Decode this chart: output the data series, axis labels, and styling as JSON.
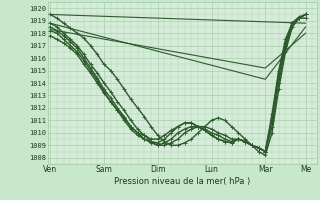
{
  "title": "",
  "xlabel": "Pression niveau de la mer( hPa )",
  "bg_color": "#c8e8cc",
  "plot_bg_color": "#d4ecd8",
  "grid_color": "#a0c8a4",
  "line_color": "#2d5a2d",
  "ylim": [
    1007.5,
    1020.5
  ],
  "yticks": [
    1008,
    1009,
    1010,
    1011,
    1012,
    1013,
    1014,
    1015,
    1016,
    1017,
    1018,
    1019,
    1020
  ],
  "x_day_labels": [
    "Ven",
    "Sam",
    "Dim",
    "Lun",
    "Mar",
    "Me"
  ],
  "x_day_positions": [
    0,
    24,
    48,
    72,
    96,
    114
  ],
  "xlim": [
    -1,
    119
  ],
  "series": [
    {
      "x": [
        0,
        114
      ],
      "y": [
        1019.5,
        1018.8
      ],
      "marker": null,
      "lw": 0.8
    },
    {
      "x": [
        0,
        96,
        114
      ],
      "y": [
        1018.8,
        1014.3,
        1018.5
      ],
      "marker": null,
      "lw": 0.8
    },
    {
      "x": [
        0,
        96,
        114
      ],
      "y": [
        1018.3,
        1015.2,
        1018.0
      ],
      "marker": null,
      "lw": 0.8
    },
    {
      "x": [
        0,
        3,
        6,
        9,
        12,
        15,
        18,
        21,
        24,
        27,
        30,
        33,
        36,
        39,
        42,
        45,
        48,
        51,
        54,
        57,
        60,
        63,
        66,
        69,
        72,
        75,
        78,
        81,
        84,
        87,
        90,
        93,
        96,
        99,
        102,
        105,
        108,
        111,
        114
      ],
      "y": [
        1019.5,
        1019.2,
        1018.8,
        1018.4,
        1018.0,
        1017.6,
        1017.0,
        1016.3,
        1015.5,
        1015.0,
        1014.3,
        1013.5,
        1012.7,
        1012.0,
        1011.3,
        1010.5,
        1009.8,
        1009.3,
        1009.0,
        1009.0,
        1009.2,
        1009.5,
        1010.0,
        1010.5,
        1011.0,
        1011.2,
        1011.0,
        1010.5,
        1010.0,
        1009.5,
        1009.0,
        1008.5,
        1008.2,
        1010.0,
        1013.5,
        1016.5,
        1018.5,
        1019.2,
        1019.5
      ],
      "marker": "+",
      "lw": 1.0,
      "ms": 2.5
    },
    {
      "x": [
        0,
        3,
        6,
        9,
        12,
        15,
        18,
        21,
        24,
        27,
        30,
        33,
        36,
        39,
        42,
        45,
        48,
        51,
        54,
        57,
        60,
        63,
        66,
        69,
        72,
        75,
        78,
        81,
        84,
        87,
        90,
        93,
        96,
        99,
        102,
        105,
        108,
        111,
        114
      ],
      "y": [
        1018.8,
        1018.5,
        1018.0,
        1017.5,
        1017.0,
        1016.3,
        1015.5,
        1014.8,
        1014.0,
        1013.3,
        1012.5,
        1011.8,
        1011.0,
        1010.3,
        1009.8,
        1009.3,
        1009.0,
        1009.0,
        1009.2,
        1009.5,
        1010.0,
        1010.3,
        1010.5,
        1010.5,
        1010.3,
        1010.0,
        1009.8,
        1009.5,
        1009.5,
        1009.3,
        1009.0,
        1008.8,
        1008.5,
        1010.5,
        1014.0,
        1016.8,
        1018.5,
        1019.2,
        1019.5
      ],
      "marker": "+",
      "lw": 1.0,
      "ms": 2.5
    },
    {
      "x": [
        0,
        3,
        6,
        9,
        12,
        15,
        18,
        21,
        24,
        27,
        30,
        33,
        36,
        39,
        42,
        45,
        48,
        51,
        54,
        57,
        60,
        63,
        66,
        69,
        72,
        75,
        78,
        81,
        84,
        87,
        90,
        93,
        96,
        99,
        102,
        105,
        108,
        111,
        114
      ],
      "y": [
        1018.5,
        1018.2,
        1017.8,
        1017.3,
        1016.8,
        1016.0,
        1015.2,
        1014.4,
        1013.5,
        1012.8,
        1012.0,
        1011.3,
        1010.5,
        1010.0,
        1009.5,
        1009.2,
        1009.0,
        1009.2,
        1009.5,
        1010.0,
        1010.3,
        1010.5,
        1010.5,
        1010.3,
        1010.0,
        1009.8,
        1009.5,
        1009.3,
        1009.5,
        1009.3,
        1009.0,
        1008.8,
        1008.5,
        1011.0,
        1014.5,
        1017.0,
        1018.8,
        1019.3,
        1019.5
      ],
      "marker": "+",
      "lw": 1.0,
      "ms": 2.5
    },
    {
      "x": [
        0,
        3,
        6,
        9,
        12,
        15,
        18,
        21,
        24,
        27,
        30,
        33,
        36,
        39,
        42,
        45,
        48,
        51,
        54,
        57,
        60,
        63,
        66,
        69,
        72,
        75,
        78,
        81,
        84,
        87,
        90,
        93,
        96,
        99,
        102,
        105,
        108,
        111,
        114
      ],
      "y": [
        1018.2,
        1018.0,
        1017.5,
        1017.0,
        1016.5,
        1015.8,
        1015.0,
        1014.2,
        1013.3,
        1012.5,
        1011.8,
        1011.0,
        1010.3,
        1009.8,
        1009.5,
        1009.3,
        1009.2,
        1009.5,
        1010.0,
        1010.5,
        1010.8,
        1010.8,
        1010.5,
        1010.2,
        1009.8,
        1009.5,
        1009.3,
        1009.2,
        1009.5,
        1009.3,
        1009.0,
        1008.8,
        1008.5,
        1011.2,
        1014.8,
        1017.2,
        1018.8,
        1019.2,
        1019.5
      ],
      "marker": "+",
      "lw": 1.0,
      "ms": 2.5
    },
    {
      "x": [
        0,
        3,
        6,
        9,
        12,
        15,
        18,
        21,
        24,
        27,
        30,
        33,
        36,
        39,
        42,
        45,
        48,
        51,
        54,
        57,
        60,
        63,
        66,
        69,
        72,
        75,
        78,
        81,
        84,
        87,
        90,
        93,
        96,
        99,
        102,
        105,
        108,
        111,
        114
      ],
      "y": [
        1017.8,
        1017.5,
        1017.2,
        1016.8,
        1016.3,
        1015.5,
        1014.8,
        1014.0,
        1013.2,
        1012.5,
        1011.8,
        1011.2,
        1010.5,
        1010.0,
        1009.8,
        1009.5,
        1009.5,
        1009.8,
        1010.2,
        1010.5,
        1010.8,
        1010.8,
        1010.5,
        1010.2,
        1009.8,
        1009.5,
        1009.3,
        1009.2,
        1009.5,
        1009.3,
        1009.0,
        1008.8,
        1008.5,
        1011.5,
        1015.0,
        1017.5,
        1018.8,
        1019.2,
        1019.2
      ],
      "marker": "+",
      "lw": 1.0,
      "ms": 2.5
    }
  ]
}
